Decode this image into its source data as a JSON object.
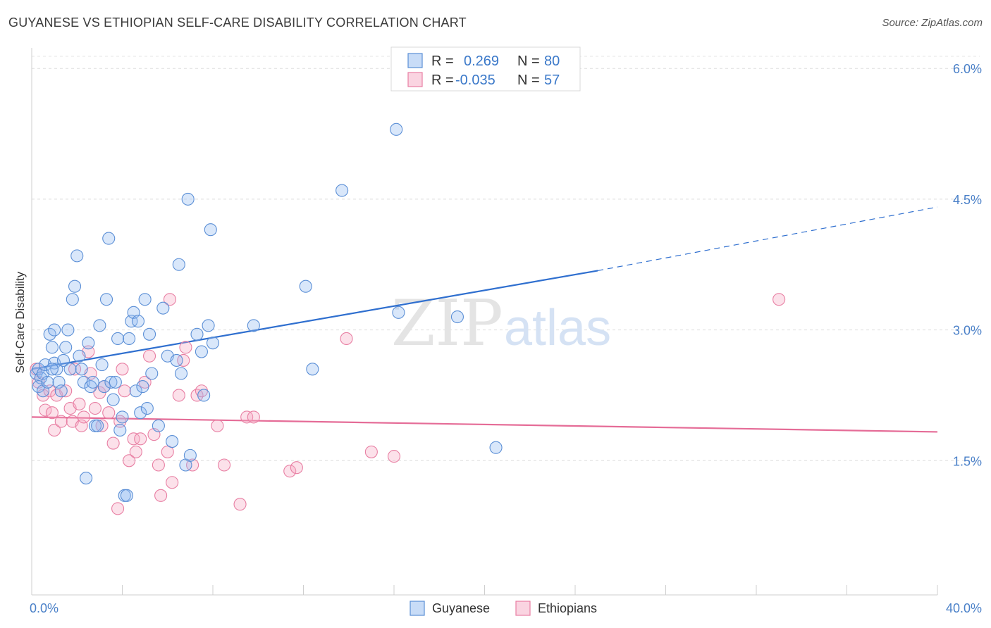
{
  "title": "GUYANESE VS ETHIOPIAN SELF-CARE DISABILITY CORRELATION CHART",
  "source": "Source: ZipAtlas.com",
  "watermark": "ZIPatlas",
  "colors": {
    "guyanese": "#5b8fd6",
    "guyanese_fill": "rgba(145,185,240,0.35)",
    "ethiopians": "#e87fa3",
    "ethiopians_fill": "rgba(245,170,195,0.35)",
    "guyanese_line": "#2f6fcf",
    "ethiopians_line": "#e56c97"
  },
  "legend": {
    "row1": {
      "r_label": "R =",
      "r_value": "0.269",
      "n_label": "N =",
      "n_value": "80"
    },
    "row2": {
      "r_label": "R =",
      "r_value": "-0.035",
      "n_label": "N =",
      "n_value": "57"
    }
  },
  "chart_data": {
    "type": "scatter",
    "title": "GUYANESE VS ETHIOPIAN SELF-CARE DISABILITY CORRELATION CHART",
    "xlabel": "",
    "ylabel": "Self-Care Disability",
    "xlim": [
      0,
      40
    ],
    "ylim": [
      0,
      6.3
    ],
    "x_tick_labels": [
      "0.0%",
      "40.0%"
    ],
    "y_ticks": [
      1.5,
      3.0,
      4.5,
      6.0
    ],
    "y_tick_labels": [
      "1.5%",
      "3.0%",
      "4.5%",
      "6.0%"
    ],
    "grid": true,
    "legend_position": "top-center",
    "series": [
      {
        "name": "Guyanese",
        "r": 0.269,
        "n": 80,
        "trend": {
          "x0": 0,
          "y0": 2.55,
          "x1": 25,
          "y1": 3.68,
          "dashed_to_x": 40,
          "dashed_to_y": 4.41
        },
        "points": [
          [
            0.2,
            2.5
          ],
          [
            0.3,
            2.55
          ],
          [
            0.4,
            2.45
          ],
          [
            0.3,
            2.35
          ],
          [
            0.5,
            2.5
          ],
          [
            0.6,
            2.6
          ],
          [
            0.5,
            2.3
          ],
          [
            0.7,
            2.4
          ],
          [
            0.8,
            2.95
          ],
          [
            0.9,
            2.8
          ],
          [
            1.0,
            2.62
          ],
          [
            1.1,
            2.55
          ],
          [
            1.2,
            2.4
          ],
          [
            1.3,
            2.3
          ],
          [
            1.4,
            2.65
          ],
          [
            1.5,
            2.8
          ],
          [
            1.6,
            3.0
          ],
          [
            1.7,
            2.55
          ],
          [
            1.8,
            3.35
          ],
          [
            1.9,
            3.5
          ],
          [
            2.0,
            3.85
          ],
          [
            2.1,
            2.7
          ],
          [
            2.2,
            2.55
          ],
          [
            2.3,
            2.4
          ],
          [
            2.4,
            1.3
          ],
          [
            2.5,
            2.85
          ],
          [
            2.6,
            2.35
          ],
          [
            2.7,
            2.4
          ],
          [
            2.8,
            1.9
          ],
          [
            2.9,
            1.9
          ],
          [
            3.0,
            3.05
          ],
          [
            3.1,
            2.6
          ],
          [
            3.2,
            2.35
          ],
          [
            3.3,
            3.35
          ],
          [
            3.4,
            4.05
          ],
          [
            3.5,
            2.4
          ],
          [
            3.6,
            2.2
          ],
          [
            3.7,
            2.4
          ],
          [
            3.8,
            2.9
          ],
          [
            3.9,
            1.85
          ],
          [
            4.0,
            2.0
          ],
          [
            4.1,
            1.1
          ],
          [
            4.2,
            1.1
          ],
          [
            4.3,
            2.9
          ],
          [
            4.4,
            3.1
          ],
          [
            4.5,
            3.2
          ],
          [
            4.6,
            2.3
          ],
          [
            4.7,
            3.1
          ],
          [
            4.8,
            2.05
          ],
          [
            4.9,
            2.35
          ],
          [
            5.0,
            3.35
          ],
          [
            5.1,
            2.1
          ],
          [
            5.2,
            2.95
          ],
          [
            5.3,
            2.5
          ],
          [
            5.6,
            1.9
          ],
          [
            5.8,
            3.25
          ],
          [
            6.0,
            2.7
          ],
          [
            6.2,
            1.72
          ],
          [
            6.4,
            2.65
          ],
          [
            6.5,
            3.75
          ],
          [
            6.6,
            2.5
          ],
          [
            6.8,
            1.45
          ],
          [
            6.9,
            4.5
          ],
          [
            7.0,
            1.56
          ],
          [
            7.3,
            2.95
          ],
          [
            7.5,
            2.75
          ],
          [
            7.6,
            2.25
          ],
          [
            7.8,
            3.05
          ],
          [
            8.0,
            2.85
          ],
          [
            7.9,
            4.15
          ],
          [
            9.8,
            3.05
          ],
          [
            12.1,
            3.5
          ],
          [
            12.4,
            2.55
          ],
          [
            13.7,
            4.6
          ],
          [
            16.1,
            5.3
          ],
          [
            16.2,
            3.2
          ],
          [
            18.8,
            3.15
          ],
          [
            20.5,
            1.65
          ],
          [
            1.0,
            3.0
          ],
          [
            0.9,
            2.55
          ]
        ]
      },
      {
        "name": "Ethiopians",
        "r": -0.035,
        "n": 57,
        "trend": {
          "x0": 0,
          "y0": 2.0,
          "x1": 40,
          "y1": 1.83
        },
        "points": [
          [
            0.2,
            2.55
          ],
          [
            0.3,
            2.4
          ],
          [
            0.5,
            2.25
          ],
          [
            0.6,
            2.08
          ],
          [
            0.8,
            2.3
          ],
          [
            0.9,
            2.05
          ],
          [
            1.0,
            1.85
          ],
          [
            1.1,
            2.25
          ],
          [
            1.3,
            1.95
          ],
          [
            1.5,
            2.3
          ],
          [
            1.7,
            2.1
          ],
          [
            1.8,
            1.95
          ],
          [
            1.9,
            2.55
          ],
          [
            2.1,
            2.15
          ],
          [
            2.2,
            1.9
          ],
          [
            2.3,
            2.0
          ],
          [
            2.5,
            2.75
          ],
          [
            2.6,
            2.5
          ],
          [
            2.8,
            2.1
          ],
          [
            3.0,
            2.28
          ],
          [
            3.1,
            1.9
          ],
          [
            3.2,
            2.35
          ],
          [
            3.4,
            2.05
          ],
          [
            3.6,
            1.7
          ],
          [
            3.8,
            0.95
          ],
          [
            3.9,
            1.95
          ],
          [
            4.0,
            2.55
          ],
          [
            4.1,
            2.3
          ],
          [
            4.3,
            1.5
          ],
          [
            4.5,
            1.75
          ],
          [
            4.6,
            1.6
          ],
          [
            4.8,
            1.75
          ],
          [
            5.0,
            2.4
          ],
          [
            5.2,
            2.7
          ],
          [
            5.4,
            1.8
          ],
          [
            5.6,
            1.45
          ],
          [
            5.7,
            1.1
          ],
          [
            6.0,
            1.6
          ],
          [
            6.1,
            3.35
          ],
          [
            6.2,
            1.25
          ],
          [
            6.5,
            2.25
          ],
          [
            6.7,
            2.65
          ],
          [
            6.8,
            2.8
          ],
          [
            7.1,
            1.45
          ],
          [
            7.3,
            2.25
          ],
          [
            7.5,
            2.3
          ],
          [
            8.2,
            1.9
          ],
          [
            8.5,
            1.45
          ],
          [
            9.2,
            1.0
          ],
          [
            9.5,
            2.0
          ],
          [
            9.8,
            2.0
          ],
          [
            11.4,
            1.38
          ],
          [
            11.7,
            1.42
          ],
          [
            13.9,
            2.9
          ],
          [
            15.0,
            1.6
          ],
          [
            16.0,
            1.55
          ],
          [
            33.0,
            3.35
          ]
        ]
      }
    ]
  },
  "bottom_legend": {
    "items": [
      {
        "label": "Guyanese"
      },
      {
        "label": "Ethiopians"
      }
    ]
  }
}
